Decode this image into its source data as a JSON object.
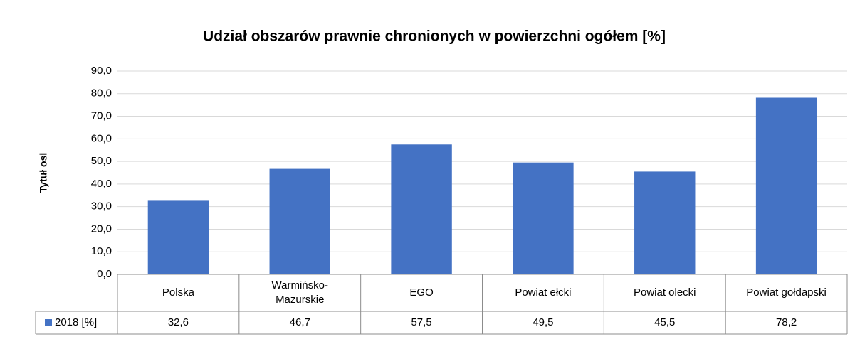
{
  "chart_data": {
    "type": "bar",
    "title": "Udział obszarów prawnie chronionych w powierzchni ogółem [%]",
    "y_label": "Tytuł osi",
    "categories": [
      "Polska",
      "Warmińsko-Mazurskie",
      "EGO",
      "Powiat ełcki",
      "Powiat olecki",
      "Powiat gołdapski"
    ],
    "series": [
      {
        "name": "2018 [%]",
        "color": "#4472c4",
        "values": [
          32.6,
          46.7,
          57.5,
          49.5,
          45.5,
          78.2
        ],
        "value_labels": [
          "32,6",
          "46,7",
          "57,5",
          "49,5",
          "45,5",
          "78,2"
        ]
      }
    ],
    "ylim": [
      0,
      90
    ],
    "yticks": [
      {
        "value": 0,
        "label": "0,0"
      },
      {
        "value": 10,
        "label": "10,0"
      },
      {
        "value": 20,
        "label": "20,0"
      },
      {
        "value": 30,
        "label": "30,0"
      },
      {
        "value": 40,
        "label": "40,0"
      },
      {
        "value": 50,
        "label": "50,0"
      },
      {
        "value": 60,
        "label": "60,0"
      },
      {
        "value": 70,
        "label": "70,0"
      },
      {
        "value": 80,
        "label": "80,0"
      },
      {
        "value": 90,
        "label": "90,0"
      }
    ],
    "grid": true
  }
}
